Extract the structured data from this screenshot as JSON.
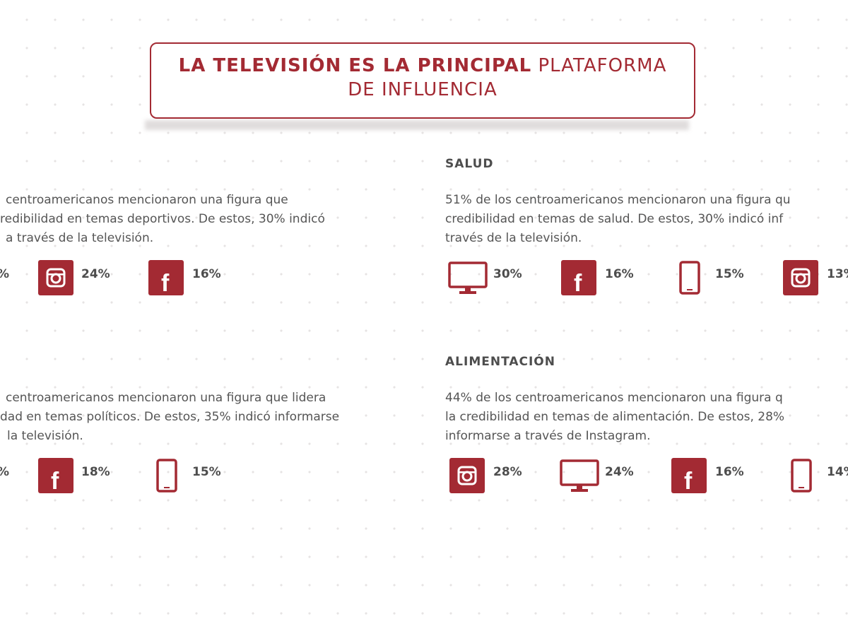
{
  "header": {
    "title_bold": "LA TELEVISIÓN ES LA PRINCIPAL",
    "title_light_1": "PLATAFORMA",
    "title_light_2": "DE INFLUENCIA"
  },
  "sections": {
    "deportes": {
      "desc_lines": [
        "centroamericanos mencionaron una figura que",
        "redibilidad en temas deportivos. De estos, 30% indicó",
        "a través de la televisión."
      ],
      "stats": [
        {
          "icon": "partial-stat",
          "value": "%"
        },
        {
          "icon": "instagram-icon",
          "value": "24%"
        },
        {
          "icon": "facebook-icon",
          "value": "16%"
        }
      ]
    },
    "salud": {
      "title": "SALUD",
      "desc_lines": [
        "51% de los centroamericanos mencionaron una figura qu",
        "credibilidad en temas de salud. De estos, 30% indicó inf",
        "través de la televisión."
      ],
      "stats": [
        {
          "icon": "television-icon",
          "value": "30%"
        },
        {
          "icon": "facebook-icon",
          "value": "16%"
        },
        {
          "icon": "mobile-phone-icon",
          "value": "15%"
        },
        {
          "icon": "instagram-icon",
          "value": "13%"
        }
      ]
    },
    "politica": {
      "desc_lines": [
        "centroamericanos mencionaron una figura que lidera",
        "dad en temas políticos. De estos, 35% indicó informarse",
        "la televisión."
      ],
      "stats": [
        {
          "icon": "partial-stat",
          "value": "%"
        },
        {
          "icon": "facebook-icon",
          "value": "18%"
        },
        {
          "icon": "mobile-phone-icon",
          "value": "15%"
        }
      ]
    },
    "alimentacion": {
      "title": "ALIMENTACIÓN",
      "desc_lines": [
        "44% de los centroamericanos mencionaron una figura q",
        "la credibilidad en temas de alimentación. De estos, 28%",
        "informarse a través de Instagram."
      ],
      "stats": [
        {
          "icon": "instagram-icon",
          "value": "28%"
        },
        {
          "icon": "television-icon",
          "value": "24%"
        },
        {
          "icon": "facebook-icon",
          "value": "16%"
        },
        {
          "icon": "mobile-phone-icon",
          "value": "14%"
        }
      ]
    }
  },
  "colors": {
    "accent": "#a32a33",
    "text": "#4d4d4d"
  }
}
